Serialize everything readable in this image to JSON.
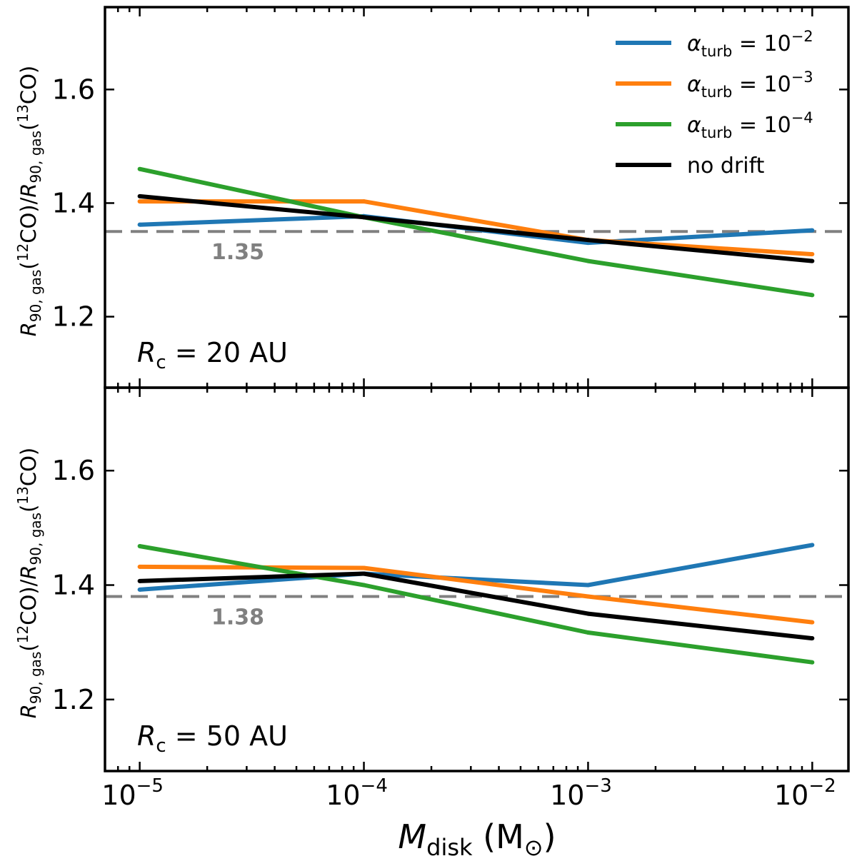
{
  "chart_data": [
    {
      "type": "line",
      "panel_label": {
        "var": "R",
        "sub": "c",
        "rest": " = 20 AU"
      },
      "x": [
        1e-05,
        0.0001,
        0.001,
        0.01
      ],
      "xscale": "log",
      "xlim": [
        7e-06,
        0.0145
      ],
      "ylim": [
        1.075,
        1.745
      ],
      "yticks": [
        1.2,
        1.4,
        1.6
      ],
      "ytick_labels": [
        "1.2",
        "1.4",
        "1.6"
      ],
      "ylabel": "R90,gas(12CO)/R90,gas(13CO)",
      "reference_line": {
        "value": 1.35,
        "label": "1.35",
        "color": "#808080"
      },
      "series": [
        {
          "name": "alpha_turb = 10^-2",
          "color": "#1f77b4",
          "values": [
            1.362,
            1.377,
            1.33,
            1.352
          ]
        },
        {
          "name": "alpha_turb = 10^-3",
          "color": "#ff7f0e",
          "values": [
            1.403,
            1.403,
            1.335,
            1.31
          ]
        },
        {
          "name": "alpha_turb = 10^-4",
          "color": "#2ca02c",
          "values": [
            1.46,
            1.375,
            1.298,
            1.238
          ]
        },
        {
          "name": "no drift",
          "color": "#000000",
          "values": [
            1.412,
            1.375,
            1.335,
            1.298
          ]
        }
      ],
      "legend": {
        "placement": "top-right",
        "entries": [
          {
            "kind": "alpha",
            "base": "10",
            "exp": "−2",
            "color": "#1f77b4"
          },
          {
            "kind": "alpha",
            "base": "10",
            "exp": "−3",
            "color": "#ff7f0e"
          },
          {
            "kind": "alpha",
            "base": "10",
            "exp": "−4",
            "color": "#2ca02c"
          },
          {
            "kind": "text",
            "text": "no drift",
            "color": "#000000"
          }
        ]
      }
    },
    {
      "type": "line",
      "panel_label": {
        "var": "R",
        "sub": "c",
        "rest": " = 50 AU"
      },
      "x": [
        1e-05,
        0.0001,
        0.001,
        0.01
      ],
      "xscale": "log",
      "xlim": [
        7e-06,
        0.0145
      ],
      "ylim": [
        1.075,
        1.745
      ],
      "yticks": [
        1.2,
        1.4,
        1.6
      ],
      "ytick_labels": [
        "1.2",
        "1.4",
        "1.6"
      ],
      "ylabel": "R90,gas(12CO)/R90,gas(13CO)",
      "reference_line": {
        "value": 1.38,
        "label": "1.38",
        "color": "#808080"
      },
      "series": [
        {
          "name": "alpha_turb = 10^-2",
          "color": "#1f77b4",
          "values": [
            1.392,
            1.42,
            1.4,
            1.47
          ]
        },
        {
          "name": "alpha_turb = 10^-3",
          "color": "#ff7f0e",
          "values": [
            1.432,
            1.43,
            1.38,
            1.335
          ]
        },
        {
          "name": "alpha_turb = 10^-4",
          "color": "#2ca02c",
          "values": [
            1.468,
            1.4,
            1.317,
            1.265
          ]
        },
        {
          "name": "no drift",
          "color": "#000000",
          "values": [
            1.407,
            1.42,
            1.35,
            1.307
          ]
        }
      ]
    }
  ],
  "x_axis": {
    "tick_base": "10",
    "tick_exponents": [
      "−5",
      "−4",
      "−3",
      "−2"
    ],
    "xlabel": {
      "var": "M",
      "sub": "disk",
      "unit_open": " (M",
      "unit_sym": "⊙",
      "unit_close": ")"
    }
  },
  "ylabel_parts": {
    "var": "R",
    "sub": "90, gas",
    "open": "(",
    "iso1": "12",
    "species": "CO",
    "mid": ")/",
    "iso2": "13",
    "close": ")"
  }
}
